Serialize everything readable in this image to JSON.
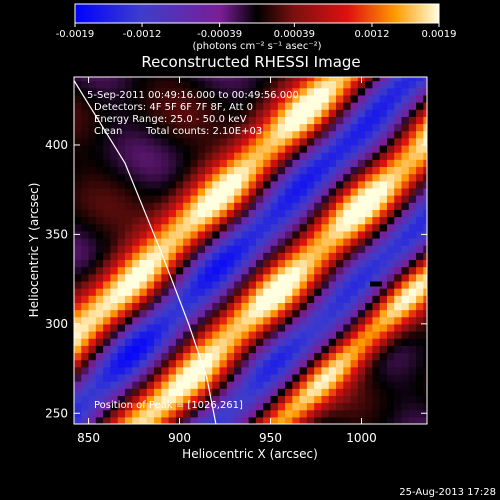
{
  "chart_data": {
    "type": "heatmap",
    "title": "Reconstructed RHESSI Image",
    "xlabel": "Heliocentric X (arcsec)",
    "ylabel": "Heliocentric Y (arcsec)",
    "xlim": [
      842,
      1036
    ],
    "ylim": [
      244,
      438
    ],
    "x_ticks": [
      850,
      900,
      950,
      1000
    ],
    "y_ticks": [
      250,
      300,
      350,
      400
    ],
    "colorbar": {
      "range": [
        -0.0019,
        0.0019
      ],
      "tick_values": [
        -0.0019,
        -0.0012,
        -0.00039,
        0.00039,
        0.0012,
        0.0019
      ],
      "tick_labels": [
        "-0.0019",
        "-0.0012",
        "-0.00039",
        "0.00039",
        "0.0012",
        "0.0019"
      ],
      "unit_label": "(photons cm⁻² s⁻¹ asec⁻²)"
    },
    "annotations": {
      "time_range": "5-Sep-2011 00:49:16.000 to 00:49:56.000",
      "detectors": "Detectors: 4F 5F 6F 7F 8F, Att 0",
      "energy_range": "Energy Range: 25.0 - 50.0 keV",
      "clean": "Clean",
      "total_counts": "Total counts: 2.10E+03",
      "peak": "Position of Peak = [1026,261]"
    },
    "peak_position": [
      1026,
      261
    ],
    "marker": [
      1008,
      322
    ],
    "limb_points": [
      [
        842,
        436
      ],
      [
        870,
        390
      ],
      [
        890,
        340
      ],
      [
        905,
        300
      ],
      [
        915,
        270
      ],
      [
        920,
        244
      ]
    ],
    "bands": [
      {
        "kind": "positive",
        "offset": -50,
        "width": 30,
        "amplitude": 1.0
      },
      {
        "kind": "negative",
        "offset": -10,
        "width": 30,
        "amplitude": -0.85
      },
      {
        "kind": "positive",
        "offset": 35,
        "width": 30,
        "amplitude": 1.0
      },
      {
        "kind": "negative",
        "offset": 75,
        "width": 28,
        "amplitude": -0.75
      },
      {
        "kind": "positive",
        "offset": 110,
        "width": 22,
        "amplitude": 0.9
      }
    ]
  },
  "footer": {
    "timestamp": "25-Aug-2013 17:28"
  }
}
